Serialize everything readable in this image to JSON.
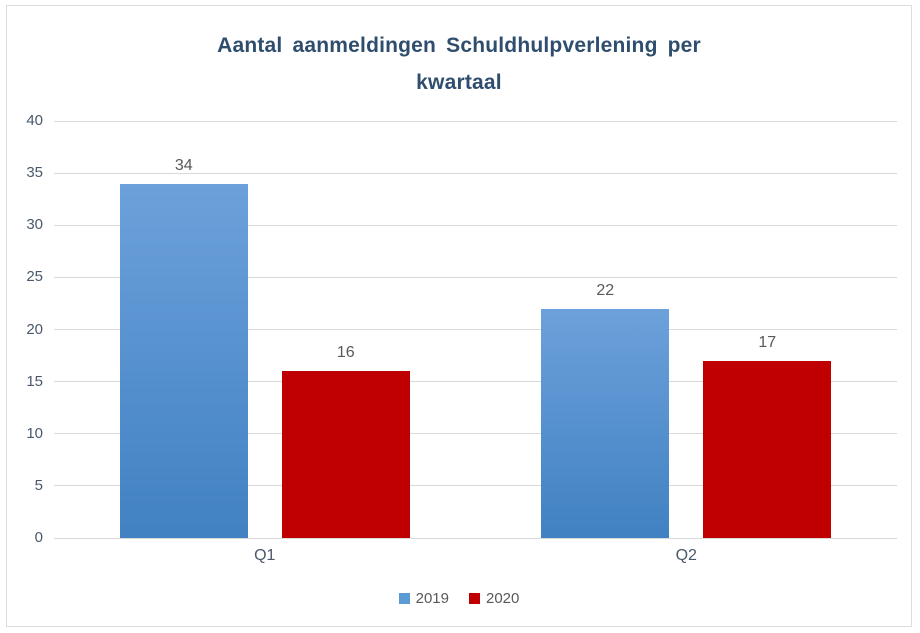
{
  "chart_data": {
    "type": "bar",
    "title": "Aantal aanmeldingen Schuldhulpverlening per kwartaal",
    "categories": [
      "Q1",
      "Q2"
    ],
    "series": [
      {
        "name": "2019",
        "values": [
          34,
          22
        ],
        "color": "#5B9BD5"
      },
      {
        "name": "2020",
        "values": [
          16,
          17
        ],
        "color": "#C00000"
      }
    ],
    "xlabel": "",
    "ylabel": "",
    "ylim": [
      0,
      40
    ],
    "ystep": 5,
    "grid": true,
    "legend_position": "bottom",
    "data_labels": [
      [
        34,
        22
      ],
      [
        16,
        17
      ]
    ]
  },
  "colors": {
    "title_text": "#2F4E6E",
    "axis_tick_text": "#49586A",
    "bar_value_text": "#595959",
    "legend_text": "#595959",
    "gridline": "#D9D9D9",
    "frame_border": "#D9DDE1",
    "series_2019": "#5B9BD5",
    "series_2019_gradient_top": "#6CA1DB",
    "series_2019_gradient_bottom": "#4181C2",
    "series_2020": "#C00000",
    "background": "#FFFFFF"
  }
}
